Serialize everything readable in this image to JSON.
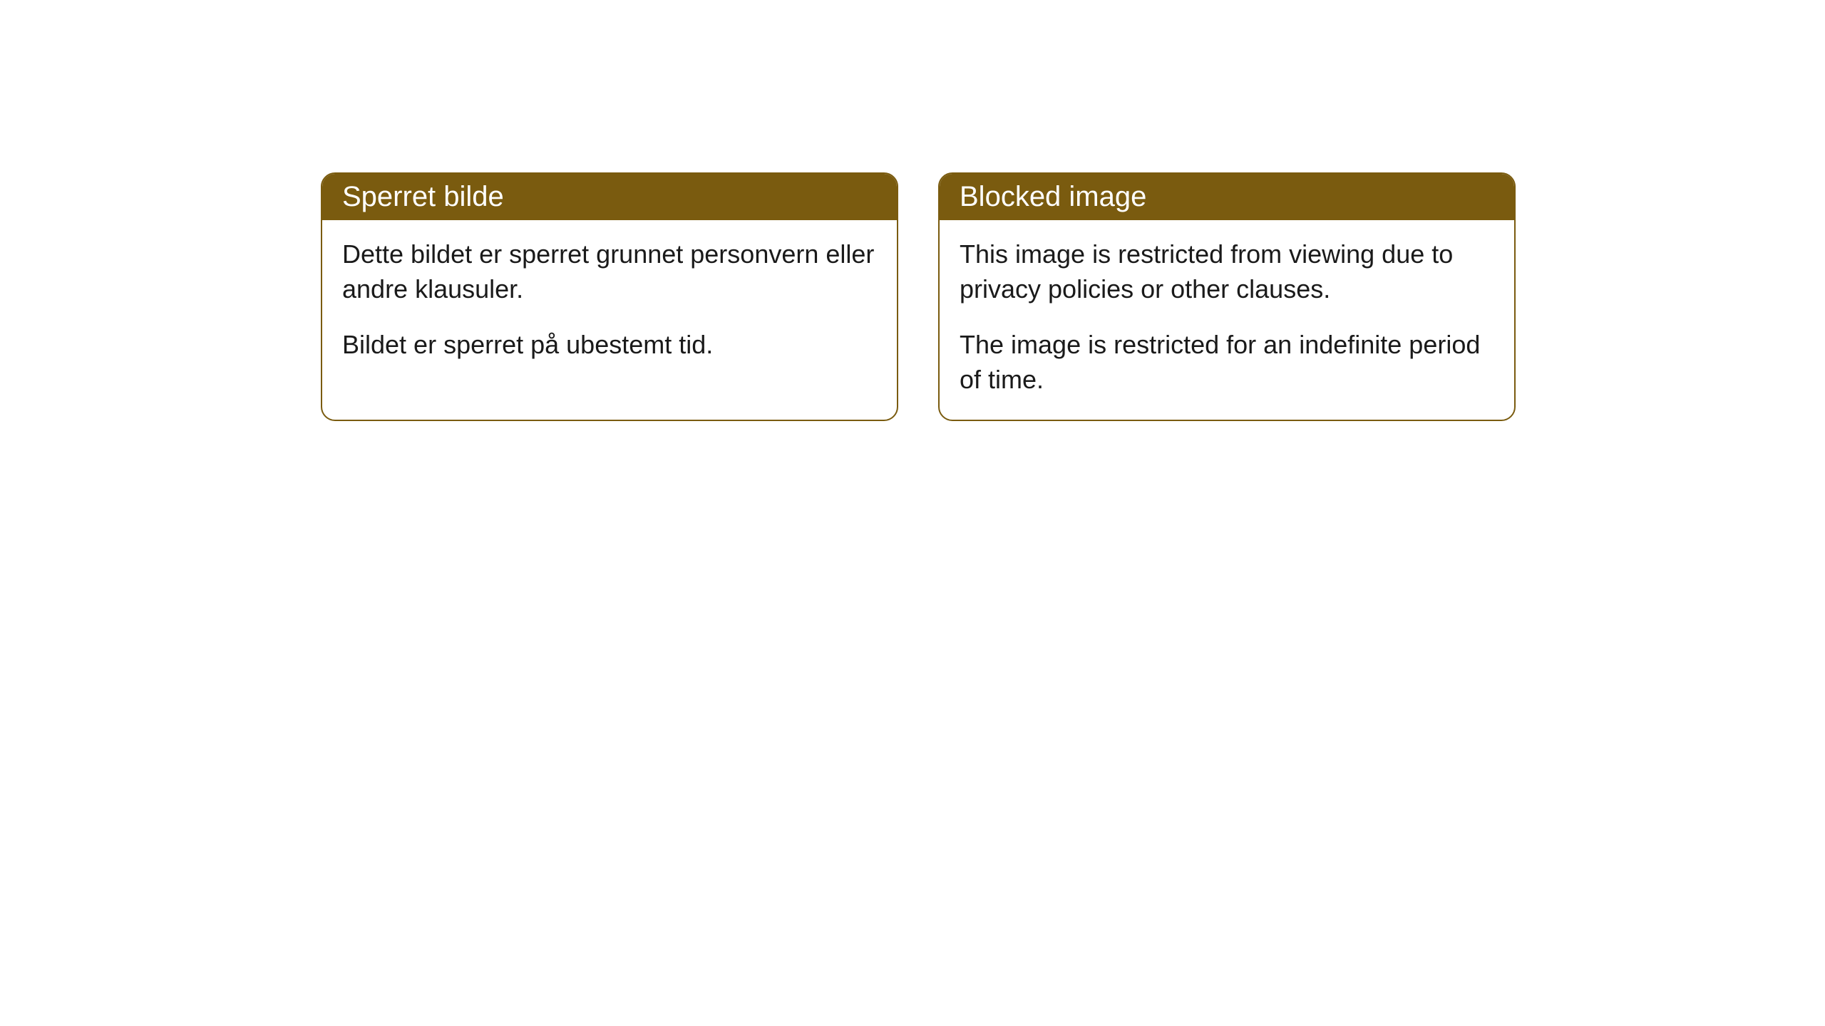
{
  "layout": {
    "background_color": "#ffffff",
    "card_border_color": "#7a5b0f",
    "card_header_bg": "#7a5b0f",
    "card_header_text_color": "#ffffff",
    "card_body_text_color": "#1a1a1a",
    "card_border_radius": 20,
    "header_fontsize": 40,
    "body_fontsize": 36
  },
  "cards": [
    {
      "title": "Sperret bilde",
      "paragraphs": [
        "Dette bildet er sperret grunnet personvern eller andre klausuler.",
        "Bildet er sperret på ubestemt tid."
      ]
    },
    {
      "title": "Blocked image",
      "paragraphs": [
        "This image is restricted from viewing due to privacy policies or other clauses.",
        "The image is restricted for an indefinite period of time."
      ]
    }
  ]
}
